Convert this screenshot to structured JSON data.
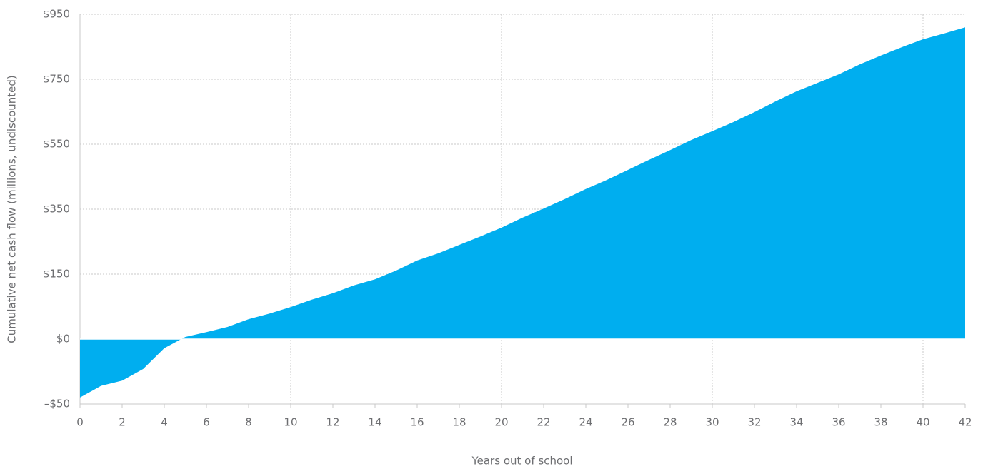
{
  "chart_data": {
    "type": "area",
    "x_label": "Years out of school",
    "y_label": "Cumulative net cash flow (millions, undiscounted)",
    "x": [
      0,
      1,
      2,
      3,
      4,
      5,
      6,
      7,
      8,
      9,
      10,
      11,
      12,
      13,
      14,
      15,
      16,
      17,
      18,
      19,
      20,
      21,
      22,
      23,
      24,
      25,
      26,
      27,
      28,
      29,
      30,
      31,
      32,
      33,
      34,
      35,
      36,
      37,
      38,
      39,
      40,
      41,
      42
    ],
    "values": [
      -45,
      -36,
      -32,
      -23,
      -7,
      5,
      16,
      28,
      46,
      59,
      74,
      91,
      106,
      124,
      138,
      161,
      192,
      214,
      240,
      266,
      293,
      324,
      352,
      381,
      412,
      440,
      471,
      502,
      532,
      563,
      590,
      618,
      649,
      682,
      713,
      739,
      765,
      796,
      823,
      849,
      873,
      891,
      910
    ],
    "color": "#00aeef",
    "xlim": [
      0,
      42
    ],
    "xticks": [
      0,
      2,
      4,
      6,
      8,
      10,
      12,
      14,
      16,
      18,
      20,
      22,
      24,
      26,
      28,
      30,
      32,
      34,
      36,
      38,
      40,
      42
    ],
    "xgrid": [
      10,
      20,
      30,
      40
    ],
    "ylim": [
      -50,
      950
    ],
    "yticks": [
      {
        "value": -50,
        "label": "–$50"
      },
      {
        "value": 0,
        "label": "$0"
      },
      {
        "value": 150,
        "label": "$150"
      },
      {
        "value": 350,
        "label": "$350"
      },
      {
        "value": 550,
        "label": "$550"
      },
      {
        "value": 750,
        "label": "$750"
      },
      {
        "value": 950,
        "label": "$950"
      }
    ],
    "grid": true
  }
}
